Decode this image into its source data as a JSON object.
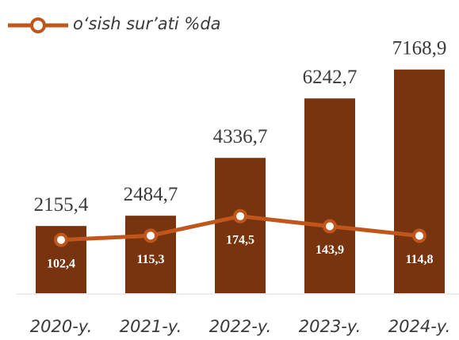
{
  "chart_data": {
    "type": "bar",
    "categories": [
      "2020-y.",
      "2021-y.",
      "2022-y.",
      "2023-y.",
      "2024-y."
    ],
    "series": [
      {
        "color": "#78340f",
        "values": [
          2155.4,
          2484.7,
          4336.7,
          6242.7,
          7168.9
        ],
        "value_labels": [
          "2155,4",
          "2484,7",
          "4336,7",
          "6242,7",
          "7168,9"
        ]
      },
      {
        "name": "o‘sish sur’ati %da",
        "type": "line",
        "axis": "y2",
        "color": "#c0561b",
        "values": [
          102.4,
          115.3,
          174.5,
          143.9,
          114.8
        ],
        "value_labels": [
          "102,4",
          "115,3",
          "174,5",
          "143,9",
          "114,8"
        ]
      }
    ],
    "ylim": [
      0,
      8000
    ],
    "y2lim": [
      -60,
      700
    ]
  }
}
